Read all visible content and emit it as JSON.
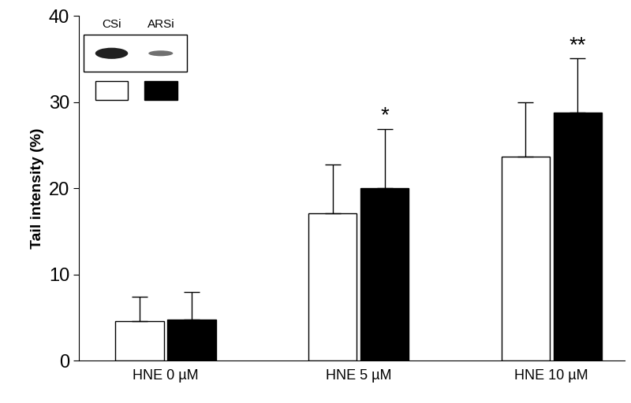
{
  "chart_data": {
    "type": "bar",
    "y_label": "Tail intensity (%)",
    "categories": [
      "HNE 0 µM",
      "HNE 5 µM",
      "HNE 10 µM"
    ],
    "series": [
      {
        "name": "CSi",
        "color": "#ffffff",
        "values": [
          4.6,
          17.1,
          23.7
        ],
        "error": [
          2.8,
          5.7,
          6.3
        ]
      },
      {
        "name": "ARSi",
        "color": "#000000",
        "values": [
          4.8,
          20.0,
          28.8
        ],
        "error": [
          3.2,
          6.9,
          6.3
        ]
      }
    ],
    "annotations": [
      {
        "category": "HNE 5 µM",
        "series": "ARSi",
        "text": "*"
      },
      {
        "category": "HNE 10 µM",
        "series": "ARSi",
        "text": "**"
      }
    ],
    "ylim": [
      0,
      40
    ],
    "yticks": [
      0,
      10,
      20,
      30,
      40
    ],
    "grid": false,
    "legend": "upper left"
  }
}
